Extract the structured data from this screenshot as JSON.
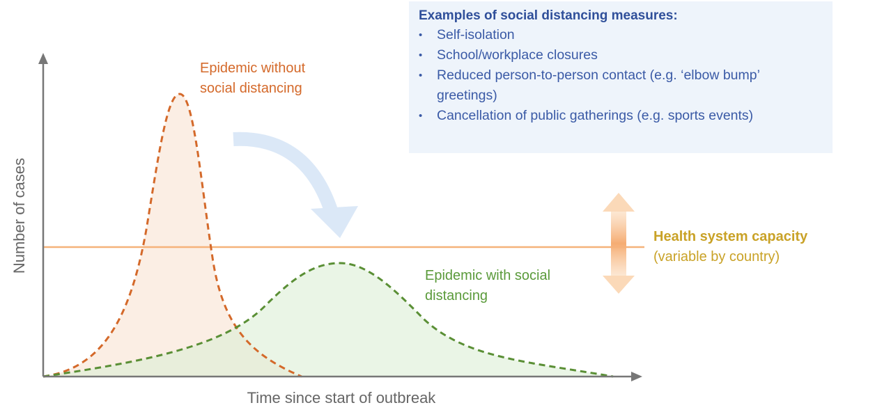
{
  "box": {
    "title": "Examples of social distancing measures:",
    "items": [
      "Self-isolation",
      "School/workplace closures",
      "Reduced person-to-person contact (e.g. ‘elbow bump’ greetings)",
      "Cancellation of public gatherings (e.g. sports events)"
    ]
  },
  "labels": {
    "without": "Epidemic without social distancing",
    "with": "Epidemic with social distancing",
    "capacity": "Health system capacity",
    "capacity_note": "(variable by country)",
    "y_axis": "Number of cases",
    "x_axis": "Time since start of outbreak"
  },
  "colors": {
    "without": "#d4692a",
    "with": "#5a9a3a",
    "capacity": "#f5b27a",
    "capacity_text": "#c9a227",
    "box_text": "#2f4f9a",
    "arrow": "#dbe8f7"
  }
}
